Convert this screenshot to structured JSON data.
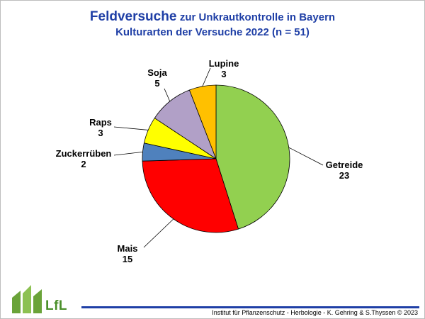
{
  "header": {
    "title_main": "Feldversuche",
    "title_rest": "zur Unkrautkontrolle in Bayern",
    "subtitle": "Kulturarten der Versuche 2022 (n = 51)"
  },
  "chart_data": {
    "type": "pie",
    "title": "Feldversuche zur Unkrautkontrolle in Bayern",
    "subtitle": "Kulturarten der Versuche 2022 (n = 51)",
    "slices": [
      {
        "label": "Getreide",
        "value": 23,
        "color": "#92d050"
      },
      {
        "label": "Mais",
        "value": 15,
        "color": "#ff0000"
      },
      {
        "label": "Zuckerrüben",
        "value": 2,
        "color": "#4f81bd"
      },
      {
        "label": "Raps",
        "value": 3,
        "color": "#ffff00"
      },
      {
        "label": "Soja",
        "value": 5,
        "color": "#b1a0c7"
      },
      {
        "label": "Lupine",
        "value": 3,
        "color": "#ffc000"
      }
    ],
    "start": "12 o'clock",
    "direction": "clockwise"
  },
  "footer": {
    "text": "Institut für Pflanzenschutz  -  Herbologie  -  K. Gehring & S.Thyssen  ©  2023",
    "logo_text": "LfL",
    "accent_color": "#1f3fa6",
    "logo_color": "#4a8f2a"
  }
}
